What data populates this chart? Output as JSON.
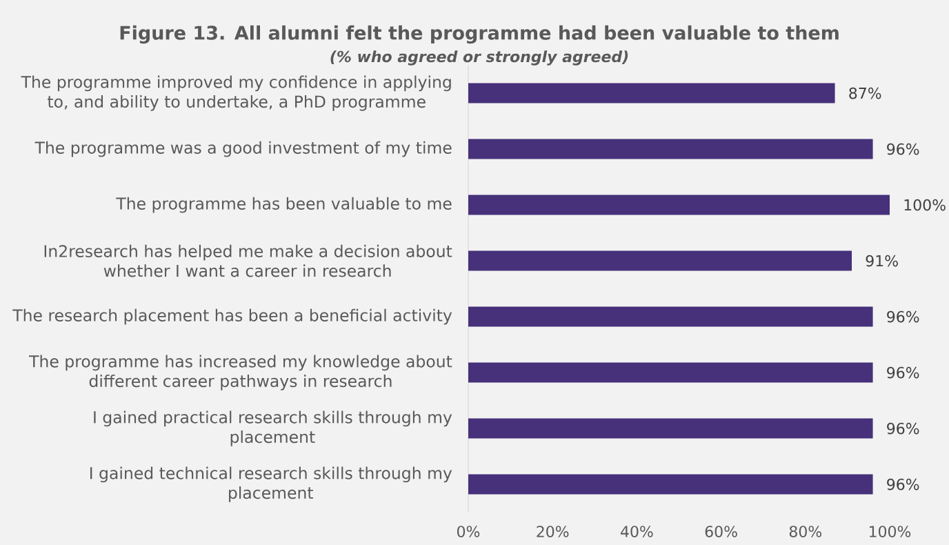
{
  "chart_data": {
    "type": "bar",
    "orientation": "horizontal",
    "title": "Figure 13. All alumni felt the programme had been valuable to them",
    "subtitle": "(% who agreed or strongly agreed)",
    "categories": [
      "The programme improved my confidence in applying to, and ability to undertake, a PhD programme",
      "The programme was a good investment of my time",
      "The programme has been valuable to me",
      "In2research has helped me make a decision about whether I want a career in research",
      "The research placement has been a beneficial activity",
      "The programme has increased my knowledge about different career pathways in research",
      "I gained practical research skills through my placement",
      "I gained technical research skills through my placement"
    ],
    "values": [
      87,
      96,
      100,
      91,
      96,
      96,
      96,
      96
    ],
    "value_labels": [
      "87%",
      "96%",
      "100%",
      "91%",
      "96%",
      "96%",
      "96%",
      "96%"
    ],
    "color": "#46317a",
    "xlim": [
      0,
      100
    ],
    "xticks": [
      {
        "value": 0,
        "label": "0%"
      },
      {
        "value": 20,
        "label": "20%"
      },
      {
        "value": 40,
        "label": "40%"
      },
      {
        "value": 60,
        "label": "60%"
      },
      {
        "value": 80,
        "label": "80%"
      },
      {
        "value": 100,
        "label": "100%"
      }
    ]
  }
}
